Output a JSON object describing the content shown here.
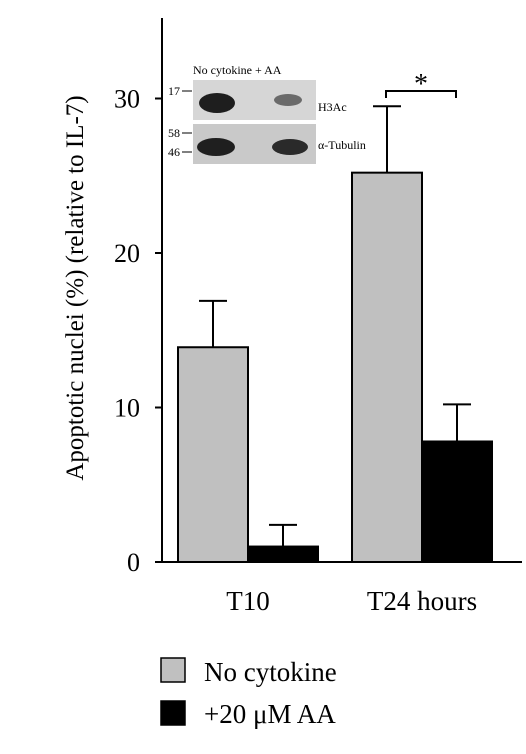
{
  "chart_data": {
    "type": "bar",
    "categories": [
      "T10",
      "T24 hours"
    ],
    "series": [
      {
        "name": "No cytokine",
        "color": "#c0c0c0",
        "values": [
          13.9,
          25.2
        ],
        "errors": [
          3.0,
          4.3
        ]
      },
      {
        "name": "+20 μM AA",
        "color": "#000000",
        "values": [
          1.0,
          7.8
        ],
        "errors": [
          1.4,
          2.4
        ]
      }
    ],
    "ylabel": "Apoptotic nuclei (%) (relative to IL-7)",
    "ylim": [
      0,
      35
    ],
    "yticks": [
      "0",
      "10",
      "20",
      "30"
    ],
    "yticks_values": [
      0,
      10,
      20,
      30
    ],
    "grid": false,
    "legend_position": "bottom",
    "significance": {
      "label": "*",
      "category": "T24 hours"
    }
  },
  "inset_blot": {
    "header": "No cytokine + AA",
    "bands": [
      {
        "label": "H3Ac",
        "markers": [
          "17"
        ]
      },
      {
        "label": "α-Tubulin",
        "markers": [
          "58",
          "46"
        ]
      }
    ]
  }
}
